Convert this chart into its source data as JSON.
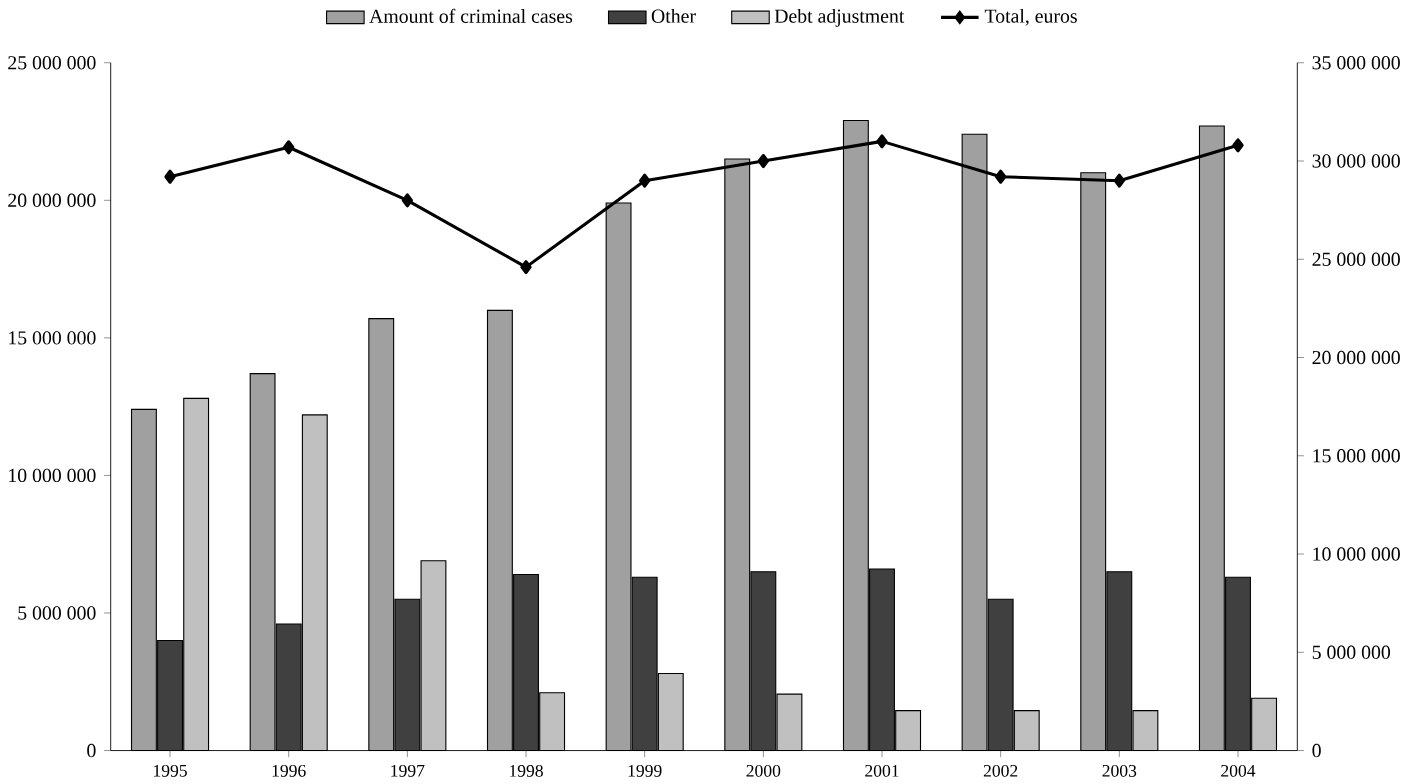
{
  "chart_data": {
    "type": "bar",
    "categories": [
      "1995",
      "1996",
      "1997",
      "1998",
      "1999",
      "2000",
      "2001",
      "2002",
      "2003",
      "2004"
    ],
    "series": [
      {
        "name": "Amount of criminal cases",
        "color": "#a0a0a0",
        "values": [
          12400000,
          13700000,
          15700000,
          16000000,
          19900000,
          21500000,
          22900000,
          22400000,
          21000000,
          22700000
        ]
      },
      {
        "name": "Other",
        "color": "#404040",
        "values": [
          4000000,
          4600000,
          5500000,
          6400000,
          6300000,
          6500000,
          6600000,
          5500000,
          6500000,
          6300000
        ]
      },
      {
        "name": "Debt adjustment",
        "color": "#c0c0c0",
        "values": [
          12800000,
          12200000,
          6900000,
          2100000,
          2800000,
          2050000,
          1450000,
          1450000,
          1450000,
          1900000
        ]
      },
      {
        "name": "Total, euros",
        "type": "line",
        "axis": "y2",
        "color": "#000000",
        "marker": "diamond",
        "values": [
          29200000,
          30700000,
          28000000,
          24600000,
          29000000,
          30000000,
          31000000,
          29200000,
          29000000,
          30800000
        ]
      }
    ],
    "ylim": [
      0,
      25000000
    ],
    "yticks": [
      {
        "value": 0,
        "label": "0"
      },
      {
        "value": 5000000,
        "label": "5 000 000"
      },
      {
        "value": 10000000,
        "label": "10 000 000"
      },
      {
        "value": 15000000,
        "label": "15 000 000"
      },
      {
        "value": 20000000,
        "label": "20 000 000"
      },
      {
        "value": 25000000,
        "label": "25 000 000"
      }
    ],
    "y2lim": [
      0,
      35000000
    ],
    "y2ticks": [
      {
        "value": 0,
        "label": "0"
      },
      {
        "value": 5000000,
        "label": "5 000 000"
      },
      {
        "value": 10000000,
        "label": "10 000 000"
      },
      {
        "value": 15000000,
        "label": "15 000 000"
      },
      {
        "value": 20000000,
        "label": "20 000 000"
      },
      {
        "value": 25000000,
        "label": "25 000 000"
      },
      {
        "value": 30000000,
        "label": "30 000 000"
      },
      {
        "value": 35000000,
        "label": "35 000 000"
      }
    ],
    "legend": "top",
    "grid": false
  }
}
